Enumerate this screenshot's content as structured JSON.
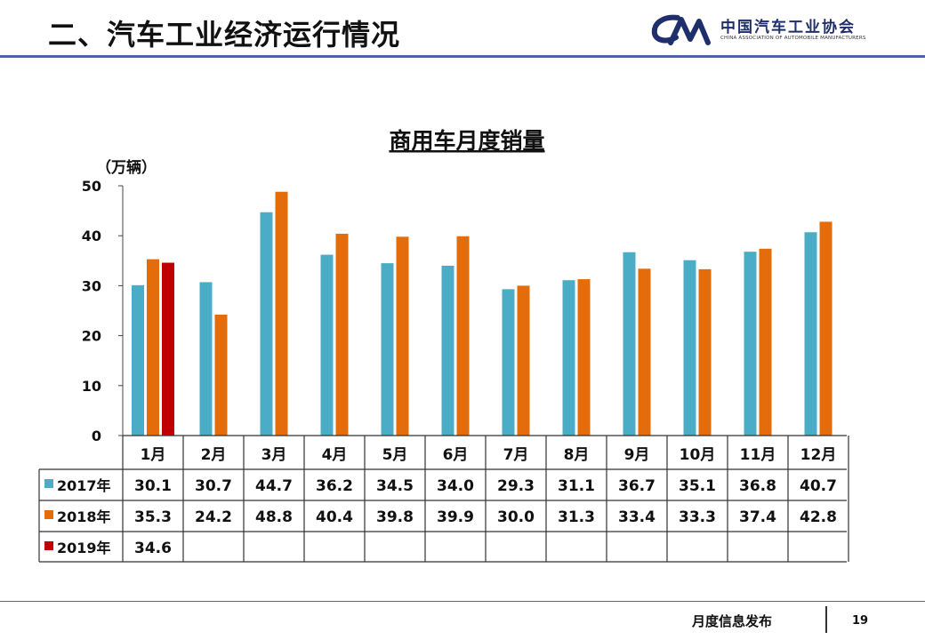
{
  "header": {
    "title": "二、汽车工业经济运行情况",
    "logo_text": "中国汽车工业协会",
    "logo_subtext": "CHINA ASSOCIATION OF AUTOMOBILE MANUFACTURERS"
  },
  "footer": {
    "text": "月度信息发布",
    "page": "19"
  },
  "colors": {
    "2017": "#4bacc6",
    "2018": "#e46c0a",
    "2019": "#c00000",
    "header_rule": "#4a64a6"
  },
  "chart_data": {
    "type": "bar",
    "title": "商用车月度销量",
    "ylabel": "（万辆）",
    "ylim": [
      0,
      50
    ],
    "yticks": [
      0,
      10,
      20,
      30,
      40,
      50
    ],
    "categories": [
      "1月",
      "2月",
      "3月",
      "4月",
      "5月",
      "6月",
      "7月",
      "8月",
      "9月",
      "10月",
      "11月",
      "12月"
    ],
    "series": [
      {
        "name": "2017年",
        "color": "#4bacc6",
        "values": [
          30.1,
          30.7,
          44.7,
          36.2,
          34.5,
          34.0,
          29.3,
          31.1,
          36.7,
          35.1,
          36.8,
          40.7
        ]
      },
      {
        "name": "2018年",
        "color": "#e46c0a",
        "values": [
          35.3,
          24.2,
          48.8,
          40.4,
          39.8,
          39.9,
          30.0,
          31.3,
          33.4,
          33.3,
          37.4,
          42.8
        ]
      },
      {
        "name": "2019年",
        "color": "#c00000",
        "values": [
          34.6,
          null,
          null,
          null,
          null,
          null,
          null,
          null,
          null,
          null,
          null,
          null
        ]
      }
    ],
    "value_labels": [
      [
        "30.1",
        "30.7",
        "44.7",
        "36.2",
        "34.5",
        "34.0",
        "29.3",
        "31.1",
        "36.7",
        "35.1",
        "36.8",
        "40.7"
      ],
      [
        "35.3",
        "24.2",
        "48.8",
        "40.4",
        "39.8",
        "39.9",
        "30.0",
        "31.3",
        "33.4",
        "33.3",
        "37.4",
        "42.8"
      ],
      [
        "34.6",
        "",
        "",
        "",
        "",
        "",
        "",
        "",
        "",
        "",
        "",
        ""
      ]
    ],
    "legend": "data-table-left",
    "grid": false
  }
}
